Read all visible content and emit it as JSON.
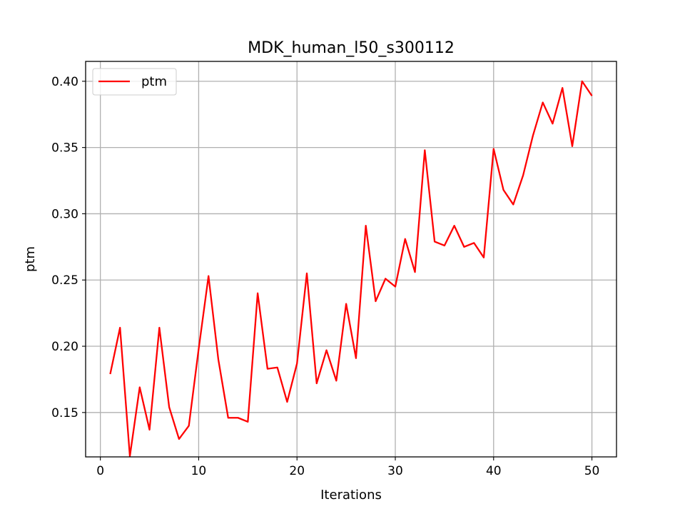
{
  "chart_data": {
    "type": "line",
    "title": "MDK_human_l50_s300112",
    "xlabel": "Iterations",
    "ylabel": "ptm",
    "xlim": [
      -1.5,
      52.5
    ],
    "ylim": [
      0.1165,
      0.415
    ],
    "xticks": [
      0,
      10,
      20,
      30,
      40,
      50
    ],
    "xtick_labels": [
      "0",
      "10",
      "20",
      "30",
      "40",
      "50"
    ],
    "yticks": [
      0.15,
      0.2,
      0.25,
      0.3,
      0.35,
      0.4
    ],
    "ytick_labels": [
      "0.15",
      "0.20",
      "0.25",
      "0.30",
      "0.35",
      "0.40"
    ],
    "grid": true,
    "legend": "upper-left",
    "series": [
      {
        "name": "ptm",
        "color": "#ff0000",
        "x": [
          1,
          2,
          3,
          4,
          5,
          6,
          7,
          8,
          9,
          10,
          11,
          12,
          13,
          14,
          15,
          16,
          17,
          18,
          19,
          20,
          21,
          22,
          23,
          24,
          25,
          26,
          27,
          28,
          29,
          30,
          31,
          32,
          33,
          34,
          35,
          36,
          37,
          38,
          39,
          40,
          41,
          42,
          43,
          44,
          45,
          46,
          47,
          48,
          49,
          50
        ],
        "values": [
          0.179,
          0.214,
          0.117,
          0.169,
          0.137,
          0.214,
          0.154,
          0.13,
          0.14,
          0.198,
          0.253,
          0.19,
          0.146,
          0.146,
          0.143,
          0.24,
          0.183,
          0.184,
          0.158,
          0.187,
          0.255,
          0.172,
          0.197,
          0.174,
          0.232,
          0.191,
          0.291,
          0.234,
          0.251,
          0.245,
          0.281,
          0.256,
          0.348,
          0.279,
          0.276,
          0.291,
          0.275,
          0.278,
          0.267,
          0.349,
          0.318,
          0.307,
          0.329,
          0.359,
          0.384,
          0.368,
          0.395,
          0.351,
          0.4,
          0.389
        ]
      }
    ]
  }
}
